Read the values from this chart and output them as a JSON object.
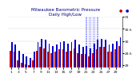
{
  "title_line1": "Milwaukee Barometric Pressure",
  "title_line2": "Daily High/Low",
  "bar_highs": [
    29.95,
    29.85,
    29.6,
    29.45,
    29.35,
    29.3,
    29.55,
    29.95,
    30.1,
    30.05,
    29.9,
    29.8,
    29.85,
    29.95,
    30.0,
    29.9,
    29.95,
    30.05,
    29.85,
    29.75,
    29.8,
    29.7,
    29.9,
    30.05,
    30.1,
    30.05,
    29.85,
    29.9,
    30.0,
    30.15
  ],
  "bar_lows": [
    29.6,
    29.55,
    29.2,
    29.1,
    29.05,
    29.0,
    29.2,
    29.6,
    29.75,
    29.7,
    29.55,
    29.5,
    29.55,
    29.65,
    29.65,
    29.55,
    29.6,
    29.7,
    29.5,
    29.45,
    29.45,
    29.35,
    29.5,
    29.65,
    29.75,
    29.75,
    29.55,
    29.55,
    29.65,
    29.8
  ],
  "dashed_indices": [
    20,
    21,
    22,
    23
  ],
  "ylim_min": 28.9,
  "ylim_max": 31.0,
  "yticks": [
    29.0,
    29.5,
    30.0,
    30.5,
    31.0
  ],
  "ytick_labels": [
    "29",
    "29.5",
    "30",
    "30.5",
    "31"
  ],
  "color_high": "#0000cc",
  "color_low": "#cc0000",
  "bg_color": "#ffffff",
  "title_color": "#000080",
  "title_fontsize": 4.0,
  "tick_fontsize": 3.2,
  "bar_width": 0.38
}
